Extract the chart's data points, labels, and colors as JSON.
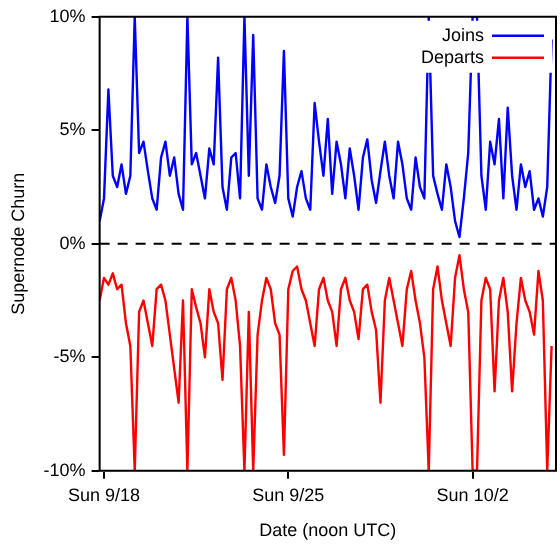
{
  "chart_data": {
    "type": "line",
    "xlabel": "Date (noon UTC)",
    "ylabel": "Supernode Churn",
    "x": [
      "--09-18T08:00",
      "--09-18T12:00",
      "--09-18T16:00",
      "--09-18T20:00",
      "--09-19T00:00",
      "--09-19T04:00",
      "--09-19T08:00",
      "--09-19T12:00",
      "--09-19T16:00",
      "--09-19T20:00",
      "--09-20T00:00",
      "--09-20T04:00",
      "--09-20T08:00",
      "--09-20T12:00",
      "--09-20T16:00",
      "--09-20T20:00",
      "--09-21T00:00",
      "--09-21T04:00",
      "--09-21T08:00",
      "--09-21T12:00",
      "--09-21T16:00",
      "--09-21T20:00",
      "--09-22T00:00",
      "--09-22T04:00",
      "--09-22T08:00",
      "--09-22T12:00",
      "--09-22T16:00",
      "--09-22T20:00",
      "--09-23T00:00",
      "--09-23T04:00",
      "--09-23T08:00",
      "--09-23T12:00",
      "--09-23T16:00",
      "--09-23T20:00",
      "--09-24T00:00",
      "--09-24T04:00",
      "--09-24T08:00",
      "--09-24T12:00",
      "--09-24T16:00",
      "--09-24T20:00",
      "--09-25T00:00",
      "--09-25T04:00",
      "--09-25T08:00",
      "--09-25T12:00",
      "--09-25T16:00",
      "--09-25T20:00",
      "--09-26T00:00",
      "--09-26T04:00",
      "--09-26T08:00",
      "--09-26T12:00",
      "--09-26T16:00",
      "--09-26T20:00",
      "--09-27T00:00",
      "--09-27T04:00",
      "--09-27T08:00",
      "--09-27T12:00",
      "--09-27T16:00",
      "--09-27T20:00",
      "--09-28T00:00",
      "--09-28T04:00",
      "--09-28T08:00",
      "--09-28T12:00",
      "--09-28T16:00",
      "--09-28T20:00",
      "--09-29T00:00",
      "--09-29T04:00",
      "--09-29T08:00",
      "--09-29T12:00",
      "--09-29T16:00",
      "--09-29T20:00",
      "--09-30T00:00",
      "--09-30T04:00",
      "--09-30T08:00",
      "--09-30T12:00",
      "--09-30T16:00",
      "--09-30T20:00",
      "--10-01T00:00",
      "--10-01T04:00",
      "--10-01T08:00",
      "--10-01T12:00",
      "--10-01T16:00",
      "--10-01T20:00",
      "--10-02T00:00",
      "--10-02T04:00",
      "--10-02T08:00",
      "--10-02T12:00",
      "--10-02T16:00",
      "--10-02T20:00",
      "--10-03T00:00",
      "--10-03T04:00",
      "--10-03T08:00",
      "--10-03T12:00",
      "--10-03T16:00",
      "--10-03T20:00",
      "--10-04T00:00",
      "--10-04T04:00",
      "--10-04T08:00",
      "--10-04T12:00",
      "--10-04T16:00",
      "--10-04T20:00",
      "--10-05T00:00",
      "--10-05T04:00",
      "--10-05T08:00",
      "--10-05T12:00"
    ],
    "series": [
      {
        "name": "Joins",
        "color": "#0000ff",
        "values": [
          1.0,
          2.0,
          6.8,
          3.0,
          2.5,
          3.5,
          2.2,
          3.0,
          10,
          4.0,
          4.5,
          3.2,
          2.0,
          1.5,
          3.8,
          4.5,
          3.0,
          3.8,
          2.2,
          1.5,
          10,
          3.5,
          4.0,
          3.0,
          2.0,
          4.2,
          3.5,
          8.2,
          2.5,
          1.5,
          3.8,
          4.0,
          2.0,
          10,
          3.0,
          9.2,
          2.0,
          1.5,
          3.5,
          2.5,
          1.8,
          3.0,
          8.5,
          2.0,
          1.2,
          2.5,
          3.2,
          2.0,
          1.5,
          6.2,
          4.5,
          3.0,
          5.5,
          2.2,
          4.5,
          3.5,
          2.0,
          4.2,
          3.0,
          1.5,
          3.8,
          4.6,
          2.8,
          1.8,
          3.2,
          4.5,
          3.0,
          2.0,
          4.5,
          3.5,
          2.0,
          1.5,
          3.8,
          2.5,
          2.0,
          10,
          3.0,
          2.2,
          1.5,
          3.5,
          2.5,
          1.0,
          0.3,
          2.0,
          4.0,
          10,
          10,
          3.0,
          1.5,
          4.5,
          3.5,
          5.5,
          2.0,
          6.0,
          3.0,
          1.5,
          3.5,
          2.5,
          3.2,
          1.5,
          2.0,
          1.2,
          2.5,
          9.0
        ]
      },
      {
        "name": "Departs",
        "color": "#ff0000",
        "values": [
          -2.5,
          -1.5,
          -1.8,
          -1.3,
          -2.0,
          -1.8,
          -3.5,
          -4.5,
          -10,
          -3.0,
          -2.5,
          -3.5,
          -4.5,
          -2.0,
          -1.8,
          -2.5,
          -4.0,
          -5.5,
          -7.0,
          -2.5,
          -10,
          -2.0,
          -2.8,
          -3.5,
          -5.0,
          -2.0,
          -3.0,
          -3.5,
          -6.0,
          -2.0,
          -1.5,
          -2.5,
          -4.5,
          -10,
          -3.0,
          -10,
          -4.0,
          -2.5,
          -1.5,
          -2.0,
          -3.5,
          -4.0,
          -9.3,
          -2.0,
          -1.2,
          -1.0,
          -2.0,
          -2.5,
          -3.5,
          -4.5,
          -2.0,
          -1.5,
          -2.5,
          -3.0,
          -4.5,
          -2.0,
          -1.5,
          -2.5,
          -3.0,
          -4.2,
          -2.0,
          -1.8,
          -3.0,
          -3.8,
          -7.0,
          -2.5,
          -1.5,
          -2.5,
          -3.5,
          -4.5,
          -2.0,
          -1.2,
          -2.5,
          -3.5,
          -5.0,
          -10,
          -2.0,
          -1.0,
          -2.5,
          -3.5,
          -4.5,
          -1.5,
          -0.5,
          -2.0,
          -3.0,
          -10,
          -10,
          -2.5,
          -1.5,
          -2.0,
          -6.5,
          -2.5,
          -1.5,
          -3.0,
          -6.5,
          -3.5,
          -1.5,
          -2.5,
          -3.0,
          -4.0,
          -1.2,
          -2.5,
          -10,
          -4.5
        ]
      }
    ],
    "xlim": [
      "--09-18T08:00",
      "--10-05T16:00"
    ],
    "xticks": [
      {
        "value": "--09-18T12:00",
        "label": "Sun 9/18"
      },
      {
        "value": "--09-25T12:00",
        "label": "Sun 9/25"
      },
      {
        "value": "--10-02T12:00",
        "label": "Sun 10/2"
      }
    ],
    "ylim": [
      -10,
      10
    ],
    "yticks": [
      {
        "value": -10,
        "label": "-10%"
      },
      {
        "value": -5,
        "label": "-5%"
      },
      {
        "value": 0,
        "label": "0%"
      },
      {
        "value": 5,
        "label": "5%"
      },
      {
        "value": 10,
        "label": "10%"
      }
    ],
    "ref_lines": [
      {
        "axis": "y",
        "value": 0,
        "color": "#000000",
        "line_style": "dashed"
      }
    ],
    "legend": "top right",
    "marker": "none",
    "line_style": "solid",
    "grid": false
  }
}
